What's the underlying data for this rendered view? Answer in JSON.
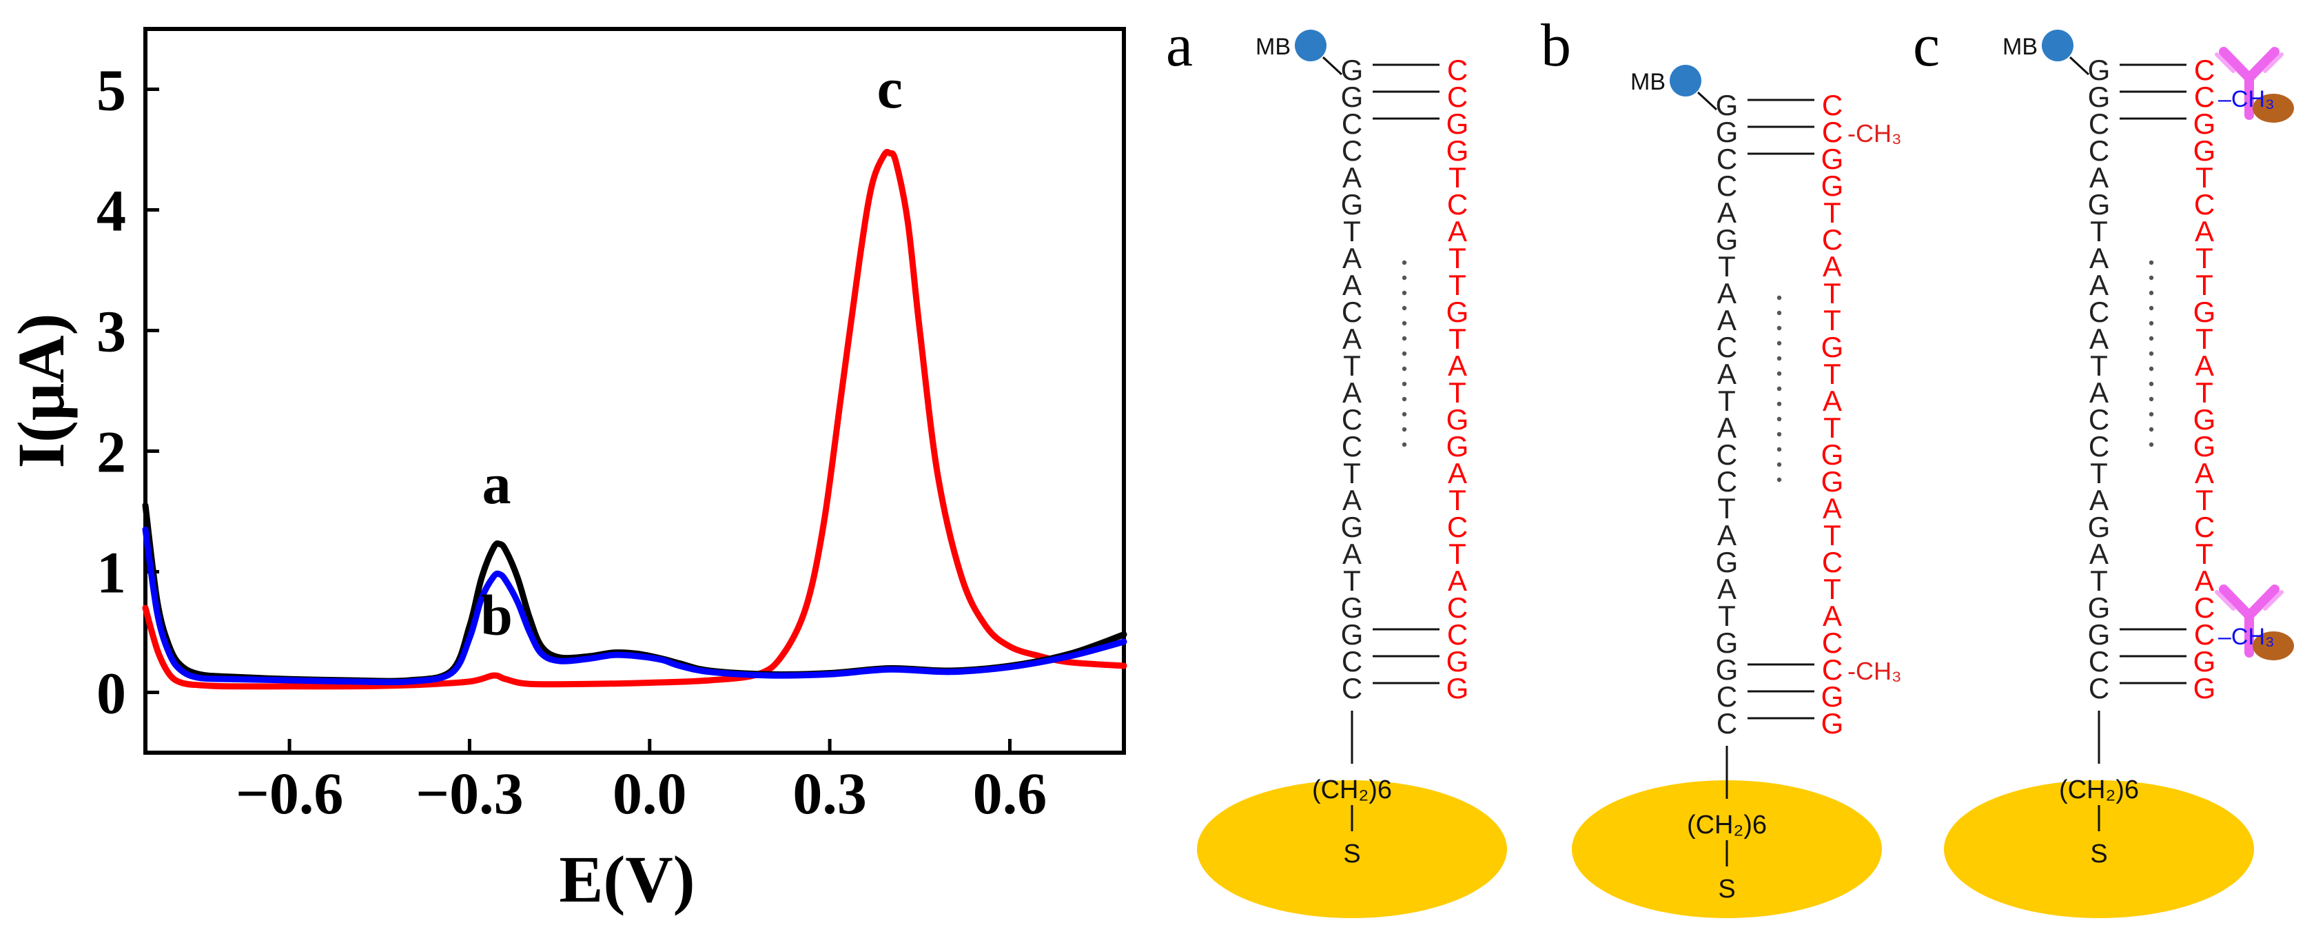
{
  "chart_data": {
    "type": "line",
    "title": "",
    "xlabel": "E(V)",
    "ylabel": "I(μA)",
    "xlim": [
      -0.84,
      0.79
    ],
    "ylim": [
      -0.5,
      5.5
    ],
    "xticks": [
      -0.6,
      -0.3,
      0.0,
      0.3,
      0.6
    ],
    "xtick_labels": [
      "−0.6",
      "−0.3",
      "0.0",
      "0.3",
      "0.6"
    ],
    "yticks": [
      0,
      1,
      2,
      3,
      4,
      5
    ],
    "ytick_labels": [
      "0",
      "1",
      "2",
      "3",
      "4",
      "5"
    ],
    "grid": false,
    "series": [
      {
        "name": "a",
        "color": "#000000",
        "x": [
          -0.84,
          -0.82,
          -0.8,
          -0.78,
          -0.75,
          -0.7,
          -0.6,
          -0.5,
          -0.4,
          -0.33,
          -0.3,
          -0.28,
          -0.26,
          -0.25,
          -0.24,
          -0.22,
          -0.2,
          -0.18,
          -0.15,
          -0.1,
          -0.06,
          -0.02,
          0.02,
          0.05,
          0.1,
          0.2,
          0.3,
          0.4,
          0.5,
          0.6,
          0.7,
          0.79
        ],
        "y": [
          1.55,
          0.75,
          0.38,
          0.22,
          0.15,
          0.13,
          0.11,
          0.1,
          0.1,
          0.18,
          0.55,
          0.95,
          1.2,
          1.23,
          1.18,
          0.95,
          0.62,
          0.38,
          0.29,
          0.3,
          0.33,
          0.32,
          0.28,
          0.24,
          0.18,
          0.15,
          0.16,
          0.2,
          0.18,
          0.22,
          0.32,
          0.48
        ]
      },
      {
        "name": "b",
        "color": "#0000ff",
        "x": [
          -0.84,
          -0.82,
          -0.8,
          -0.78,
          -0.75,
          -0.7,
          -0.6,
          -0.5,
          -0.4,
          -0.33,
          -0.3,
          -0.28,
          -0.26,
          -0.25,
          -0.24,
          -0.22,
          -0.2,
          -0.18,
          -0.15,
          -0.1,
          -0.06,
          -0.02,
          0.02,
          0.05,
          0.1,
          0.2,
          0.3,
          0.4,
          0.5,
          0.6,
          0.7,
          0.79
        ],
        "y": [
          1.35,
          0.65,
          0.32,
          0.18,
          0.12,
          0.11,
          0.1,
          0.09,
          0.09,
          0.16,
          0.45,
          0.78,
          0.96,
          0.98,
          0.93,
          0.75,
          0.5,
          0.32,
          0.26,
          0.28,
          0.31,
          0.3,
          0.27,
          0.22,
          0.17,
          0.14,
          0.15,
          0.19,
          0.17,
          0.21,
          0.3,
          0.42
        ]
      },
      {
        "name": "c",
        "color": "#ff0000",
        "x": [
          -0.84,
          -0.82,
          -0.8,
          -0.78,
          -0.75,
          -0.7,
          -0.6,
          -0.5,
          -0.4,
          -0.3,
          -0.26,
          -0.24,
          -0.2,
          -0.1,
          0.0,
          0.1,
          0.18,
          0.22,
          0.26,
          0.29,
          0.32,
          0.35,
          0.37,
          0.39,
          0.4,
          0.41,
          0.43,
          0.45,
          0.48,
          0.52,
          0.56,
          0.6,
          0.65,
          0.7,
          0.79
        ],
        "y": [
          0.7,
          0.35,
          0.15,
          0.08,
          0.06,
          0.05,
          0.05,
          0.05,
          0.06,
          0.09,
          0.14,
          0.11,
          0.07,
          0.07,
          0.08,
          0.1,
          0.15,
          0.3,
          0.7,
          1.4,
          2.5,
          3.6,
          4.2,
          4.45,
          4.47,
          4.4,
          3.9,
          3.0,
          1.8,
          0.95,
          0.55,
          0.38,
          0.3,
          0.25,
          0.22
        ]
      }
    ],
    "annotations": [
      {
        "text": "a",
        "x": -0.255,
        "y": 1.57
      },
      {
        "text": "b",
        "x": -0.255,
        "y": 0.48
      },
      {
        "text": "c",
        "x": 0.4,
        "y": 4.85
      }
    ]
  },
  "diagrams": [
    {
      "label": "a",
      "mb_label": "MB",
      "left_strand": [
        "G",
        "G",
        "C",
        "C",
        "A",
        "G",
        "T",
        "A",
        "A",
        "C",
        "A",
        "T",
        "A",
        "C",
        "C",
        "T",
        "A",
        "G",
        "A",
        "T",
        "G",
        "G",
        "C",
        "C"
      ],
      "right_strand": [
        "C",
        "C",
        "G",
        "G",
        "T",
        "C",
        "A",
        "T",
        "T",
        "G",
        "T",
        "A",
        "T",
        "G",
        "G",
        "A",
        "T",
        "C",
        "T",
        "A",
        "C",
        "C",
        "G",
        "G"
      ],
      "methyl_label": "",
      "linker": "(CH₂)6",
      "sulfur": "S"
    },
    {
      "label": "b",
      "mb_label": "MB",
      "left_strand": [
        "G",
        "G",
        "C",
        "C",
        "A",
        "G",
        "T",
        "A",
        "A",
        "C",
        "A",
        "T",
        "A",
        "C",
        "C",
        "T",
        "A",
        "G",
        "A",
        "T",
        "G",
        "G",
        "C",
        "C"
      ],
      "right_strand": [
        "C",
        "C",
        "G",
        "G",
        "T",
        "C",
        "A",
        "T",
        "T",
        "G",
        "T",
        "A",
        "T",
        "G",
        "G",
        "A",
        "T",
        "C",
        "T",
        "A",
        "C",
        "C",
        "G",
        "G"
      ],
      "methyl_label": "-CH₃",
      "linker": "(CH₂)6",
      "sulfur": "S"
    },
    {
      "label": "c",
      "mb_label": "MB",
      "left_strand": [
        "G",
        "G",
        "C",
        "C",
        "A",
        "G",
        "T",
        "A",
        "A",
        "C",
        "A",
        "T",
        "A",
        "C",
        "C",
        "T",
        "A",
        "G",
        "A",
        "T",
        "G",
        "G",
        "C",
        "C"
      ],
      "right_strand": [
        "C",
        "C",
        "G",
        "G",
        "T",
        "C",
        "A",
        "T",
        "T",
        "G",
        "T",
        "A",
        "T",
        "G",
        "G",
        "A",
        "T",
        "C",
        "T",
        "A",
        "C",
        "C",
        "G",
        "G"
      ],
      "methyl_label": "–CH₃",
      "linker": "(CH₂)6",
      "sulfur": "S"
    }
  ],
  "colors": {
    "strand_left": "#222222",
    "strand_right": "#ff0000",
    "methyl_red": "#e0201c",
    "methyl_blue": "#1010ee",
    "mb_bead": "#2e7cc4",
    "electrode": "#ffcc00",
    "antibody": "#ee66ee",
    "antibody_bead": "#b5621e"
  }
}
